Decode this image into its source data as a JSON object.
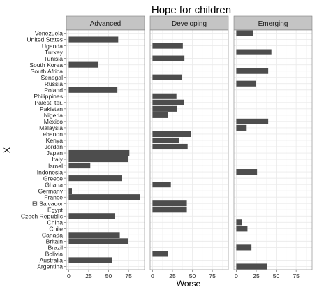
{
  "chart_data": {
    "type": "bar",
    "orientation": "horizontal",
    "title": "Hope for children",
    "xlabel": "Worse",
    "ylabel": "X",
    "xlim": [
      -3,
      95
    ],
    "xticks": [
      0,
      25,
      50,
      75
    ],
    "grid": true,
    "legend": "none",
    "bar_color": "#4d4d4d",
    "panel_background": "#ffffff",
    "grid_color": "#ebebeb",
    "strip_color": "#c4c4c4",
    "categories": [
      "Venezuela",
      "United States",
      "Uganda",
      "Turkey",
      "Tunisia",
      "South Korea",
      "South Africa",
      "Senegal",
      "Russia",
      "Poland",
      "Philippines",
      "Palest. ter.",
      "Pakistan",
      "Nigeria",
      "Mexico",
      "Malaysia",
      "Lebanon",
      "Kenya",
      "Jordan",
      "Japan",
      "Italy",
      "Israel",
      "Indonesia",
      "Greece",
      "Ghana",
      "Germany",
      "France",
      "El Salvador",
      "Egypt",
      "Czech Republic",
      "China",
      "Chile",
      "Canada",
      "Britain",
      "Brazil",
      "Bolivia",
      "Australia",
      "Argentina"
    ],
    "panels": [
      {
        "name": "Advanced",
        "bars": [
          {
            "category": "United States",
            "value": 62
          },
          {
            "category": "South Korea",
            "value": 37
          },
          {
            "category": "Poland",
            "value": 61
          },
          {
            "category": "Japan",
            "value": 76
          },
          {
            "category": "Italy",
            "value": 74
          },
          {
            "category": "Israel",
            "value": 27
          },
          {
            "category": "Greece",
            "value": 67
          },
          {
            "category": "Germany",
            "value": 4
          },
          {
            "category": "France",
            "value": 89
          },
          {
            "category": "Czech Republic",
            "value": 58
          },
          {
            "category": "Canada",
            "value": 64
          },
          {
            "category": "Britain",
            "value": 74
          },
          {
            "category": "Australia",
            "value": 54
          }
        ]
      },
      {
        "name": "Developing",
        "bars": [
          {
            "category": "Uganda",
            "value": 38
          },
          {
            "category": "Tunisia",
            "value": 40
          },
          {
            "category": "Senegal",
            "value": 37
          },
          {
            "category": "Philippines",
            "value": 30
          },
          {
            "category": "Palest. ter.",
            "value": 39
          },
          {
            "category": "Pakistan",
            "value": 31
          },
          {
            "category": "Nigeria",
            "value": 19
          },
          {
            "category": "Lebanon",
            "value": 48
          },
          {
            "category": "Kenya",
            "value": 33
          },
          {
            "category": "Jordan",
            "value": 44
          },
          {
            "category": "Ghana",
            "value": 23
          },
          {
            "category": "El Salvador",
            "value": 43
          },
          {
            "category": "Egypt",
            "value": 43
          },
          {
            "category": "Bolivia",
            "value": 19
          }
        ]
      },
      {
        "name": "Emerging",
        "bars": [
          {
            "category": "Venezuela",
            "value": 21
          },
          {
            "category": "Turkey",
            "value": 44
          },
          {
            "category": "South Africa",
            "value": 40
          },
          {
            "category": "Russia",
            "value": 25
          },
          {
            "category": "Mexico",
            "value": 40
          },
          {
            "category": "Malaysia",
            "value": 13
          },
          {
            "category": "Indonesia",
            "value": 26
          },
          {
            "category": "China",
            "value": 7
          },
          {
            "category": "Chile",
            "value": 14
          },
          {
            "category": "Brazil",
            "value": 19
          },
          {
            "category": "Argentina",
            "value": 39
          }
        ]
      }
    ]
  }
}
